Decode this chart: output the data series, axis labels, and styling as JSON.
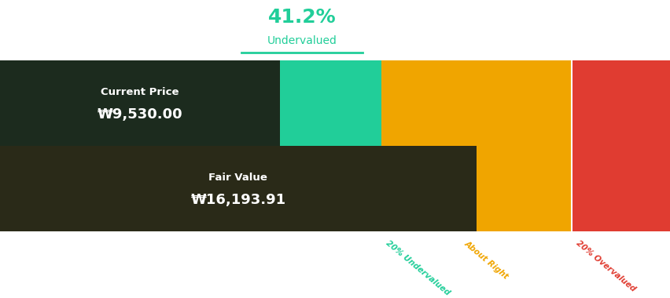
{
  "title_percent": "41.2%",
  "title_label": "Undervalued",
  "title_color": "#21CE99",
  "current_price_label": "Current Price",
  "current_price_value": "₩9,530.00",
  "fair_value_label": "Fair Value",
  "fair_value_value": "₩16,193.91",
  "current_price": 9530.0,
  "fair_value": 16193.91,
  "colors": {
    "dark_green": "#1B5E3B",
    "light_green": "#21CE99",
    "orange": "#F0A500",
    "red": "#E03C31",
    "dark_box1": "#1C2B1E",
    "dark_box2": "#2A2A18",
    "white": "#FFFFFF",
    "background": "#FFFFFF"
  },
  "segment_labels": [
    "20% Undervalued",
    "About Right",
    "20% Overvalued"
  ],
  "segment_label_colors": [
    "#21CE99",
    "#F0A500",
    "#E03C31"
  ]
}
